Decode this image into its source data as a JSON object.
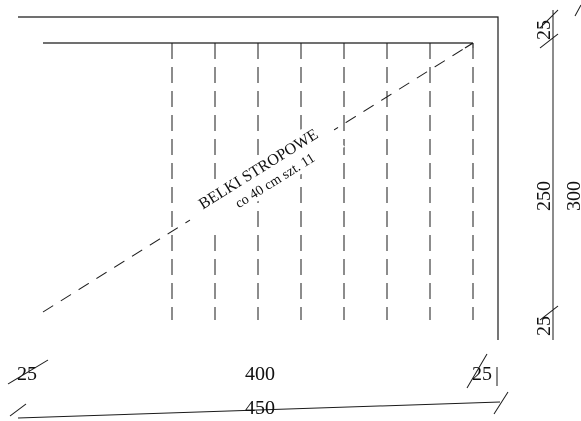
{
  "drawing": {
    "beam_label_line1": "BELKI STROPOWE",
    "beam_label_line2": "co 40 cm szt. 11",
    "dim_bottom_left": "25",
    "dim_bottom_mid": "400",
    "dim_bottom_right": "25",
    "dim_bottom_total": "450",
    "dim_right_top": "25",
    "dim_right_mid": "250",
    "dim_right_bottom": "25",
    "dim_right_total": "300",
    "beam_count": 11,
    "line_color": "#1a1a1a"
  }
}
